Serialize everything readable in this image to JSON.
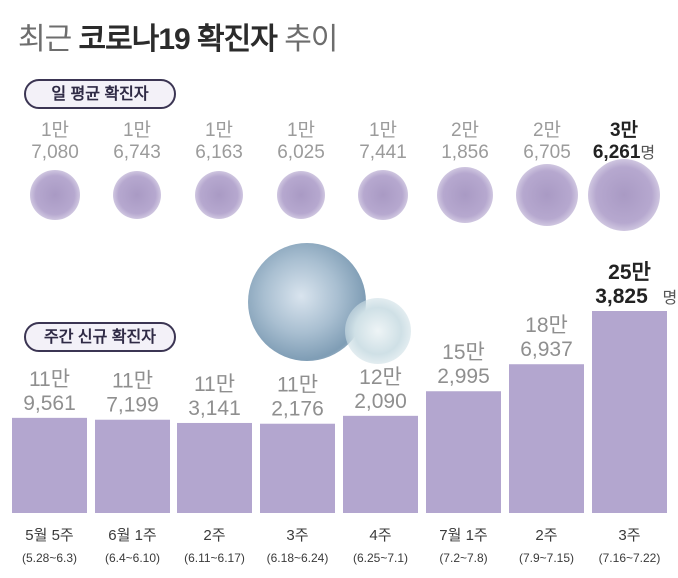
{
  "title": {
    "light": "최근 ",
    "bold": "코로나19 확진자",
    "tail": " 추이"
  },
  "labels": {
    "daily": "일 평균 확진자",
    "weekly": "주간 신규 확진자",
    "unit": "명"
  },
  "chart_data": [
    {
      "type": "scatter",
      "title": "일 평균 확진자",
      "categories": [
        "5월 5주",
        "6월 1주",
        "2주",
        "3주",
        "4주",
        "7월 1주",
        "2주",
        "3주"
      ],
      "values": [
        17080,
        16743,
        16163,
        16025,
        17441,
        21856,
        26705,
        36261
      ],
      "value_labels": [
        [
          "1만",
          "7,080"
        ],
        [
          "1만",
          "6,743"
        ],
        [
          "1만",
          "6,163"
        ],
        [
          "1만",
          "6,025"
        ],
        [
          "1만",
          "7,441"
        ],
        [
          "2만",
          "1,856"
        ],
        [
          "2만",
          "6,705"
        ],
        [
          "3만",
          "6,261"
        ]
      ]
    },
    {
      "type": "bar",
      "title": "주간 신규 확진자",
      "categories": [
        "5월 5주",
        "6월 1주",
        "2주",
        "3주",
        "4주",
        "7월 1주",
        "2주",
        "3주"
      ],
      "date_ranges": [
        "(5.28~6.3)",
        "(6.4~6.10)",
        "(6.11~6.17)",
        "(6.18~6.24)",
        "(6.25~7.1)",
        "(7.2~7.8)",
        "(7.9~7.15)",
        "(7.16~7.22)"
      ],
      "values": [
        119561,
        117199,
        113141,
        112176,
        122090,
        152995,
        186937,
        253825
      ],
      "value_labels": [
        [
          "11만",
          "9,561"
        ],
        [
          "11만",
          "7,199"
        ],
        [
          "11만",
          "3,141"
        ],
        [
          "11만",
          "2,176"
        ],
        [
          "12만",
          "2,090"
        ],
        [
          "15만",
          "2,995"
        ],
        [
          "18만",
          "6,937"
        ],
        [
          "25만",
          "3,825"
        ]
      ],
      "bar_color": "#b3a6cf"
    }
  ]
}
